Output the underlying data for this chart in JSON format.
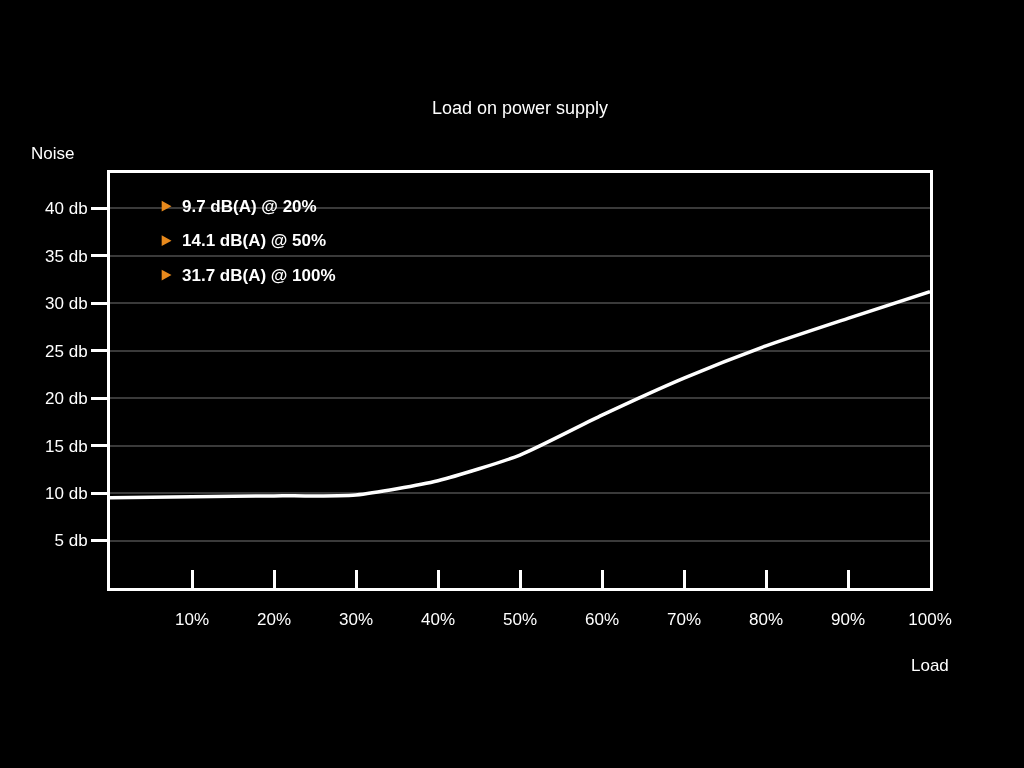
{
  "chart_data": {
    "type": "line",
    "title": "Load on power supply",
    "xlabel": "Load",
    "ylabel": "Noise",
    "x": [
      0,
      10,
      20,
      30,
      40,
      50,
      60,
      70,
      80,
      90,
      100
    ],
    "series": [
      {
        "color": "#ffffff",
        "values": [
          9.5,
          9.6,
          9.7,
          9.8,
          11.3,
          14.0,
          18.2,
          22.1,
          25.5,
          28.4,
          31.2
        ]
      }
    ],
    "xlim": [
      0,
      100
    ],
    "ylim": [
      0,
      43.7
    ],
    "xticks": [
      {
        "value": 10,
        "label": "10%"
      },
      {
        "value": 20,
        "label": "20%"
      },
      {
        "value": 30,
        "label": "30%"
      },
      {
        "value": 40,
        "label": "40%"
      },
      {
        "value": 50,
        "label": "50%"
      },
      {
        "value": 60,
        "label": "60%"
      },
      {
        "value": 70,
        "label": "70%"
      },
      {
        "value": 80,
        "label": "80%"
      },
      {
        "value": 90,
        "label": "90%"
      },
      {
        "value": 100,
        "label": "100%"
      }
    ],
    "yticks": [
      {
        "value": 5,
        "label": "5 db"
      },
      {
        "value": 10,
        "label": "10 db"
      },
      {
        "value": 15,
        "label": "15 db"
      },
      {
        "value": 20,
        "label": "20 db"
      },
      {
        "value": 25,
        "label": "25 db"
      },
      {
        "value": 30,
        "label": "30 db"
      },
      {
        "value": 35,
        "label": "35 db"
      },
      {
        "value": 40,
        "label": "40 db"
      }
    ],
    "annotations": [
      "9.7 dB(A) @ 20%",
      "14.1 dB(A) @ 50%",
      "31.7 dB(A) @ 100%"
    ],
    "grid": "y",
    "marker": "none",
    "line_style": "solid"
  }
}
